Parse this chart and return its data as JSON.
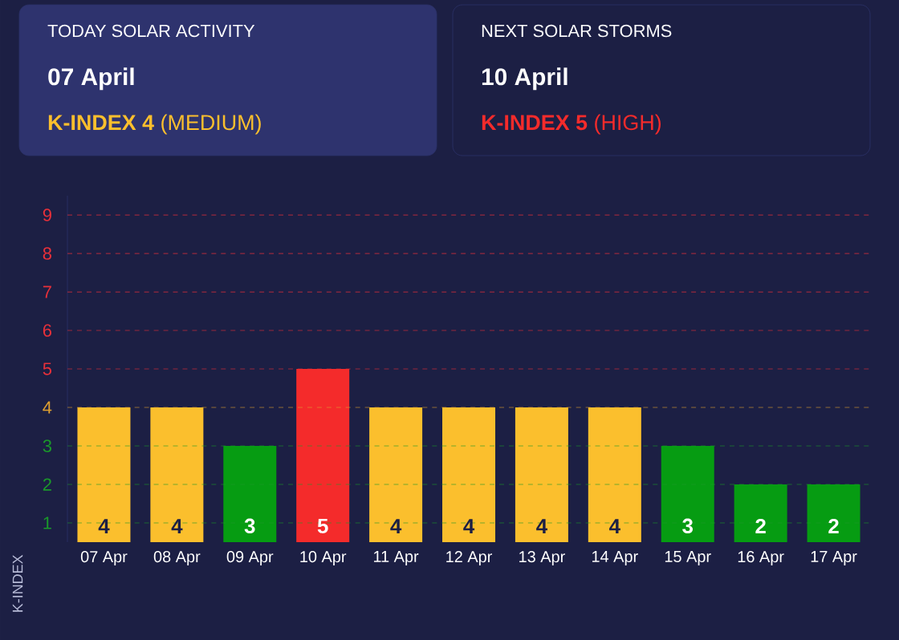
{
  "chart_data": [
    {
      "type": "other",
      "title": "TODAY SOLAR ACTIVITY",
      "annotations": [
        "07 April",
        "**K-INDEX 4** (MEDIUM)"
      ],
      "color": "#fbbf2d"
    },
    {
      "type": "other",
      "title": "NEXT SOLAR STORMS",
      "annotations": [
        "10 April",
        "**K-INDEX 5** (HIGH)"
      ],
      "color": "#f42b2b"
    },
    {
      "type": "bar",
      "categories": [
        "07 Apr",
        "08 Apr",
        "09 Apr",
        "10 Apr",
        "11 Apr",
        "12 Apr",
        "13 Apr",
        "14 Apr",
        "15 Apr",
        "16 Apr",
        "17 Apr"
      ],
      "values": [
        4,
        4,
        3,
        5,
        4,
        4,
        4,
        4,
        3,
        2,
        2
      ],
      "colors": [
        "#fbbf2d",
        "#fbbf2d",
        "#069c12",
        "#f42b2b",
        "#fbbf2d",
        "#fbbf2d",
        "#fbbf2d",
        "#fbbf2d",
        "#069c12",
        "#069c12",
        "#069c12"
      ],
      "data_labels": true,
      "ylabel": "K-INDEX",
      "ylim": [
        0.5,
        9.5
      ],
      "yticks": [
        1,
        2,
        3,
        4,
        5,
        6,
        7,
        8,
        9
      ],
      "ref_lines": [
        {
          "axis": "y",
          "value": 1,
          "color": "#1a9a2a",
          "line_style": "dashed"
        },
        {
          "axis": "y",
          "value": 2,
          "color": "#1a9a2a",
          "line_style": "dashed"
        },
        {
          "axis": "y",
          "value": 3,
          "color": "#1a9a2a",
          "line_style": "dashed"
        },
        {
          "axis": "y",
          "value": 4,
          "color": "#e0a030",
          "line_style": "dashed"
        },
        {
          "axis": "y",
          "value": 5,
          "color": "#e8303a",
          "line_style": "dashed"
        },
        {
          "axis": "y",
          "value": 6,
          "color": "#e8303a",
          "line_style": "dashed"
        },
        {
          "axis": "y",
          "value": 7,
          "color": "#e8303a",
          "line_style": "dashed"
        },
        {
          "axis": "y",
          "value": 8,
          "color": "#e8303a",
          "line_style": "dashed"
        },
        {
          "axis": "y",
          "value": 9,
          "color": "#e8303a",
          "line_style": "dashed"
        }
      ]
    }
  ]
}
